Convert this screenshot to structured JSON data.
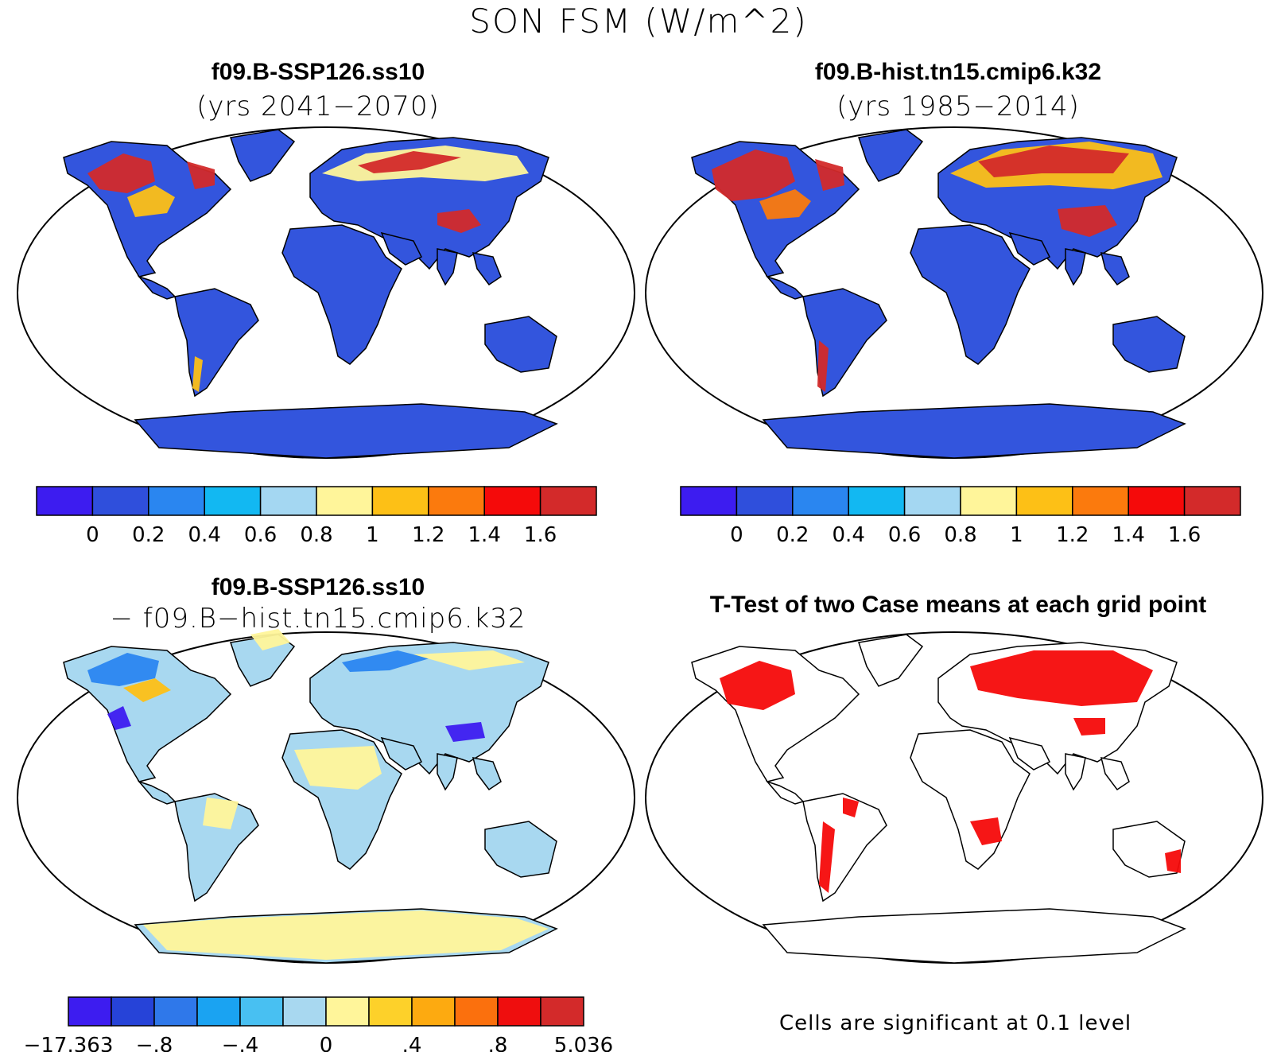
{
  "figure_title": "SON FSM (W/m^2)",
  "panels": [
    {
      "title": "f09.B-SSP126.ss10",
      "subtitle": "(yrs 2041−2070)"
    },
    {
      "title": "f09.B-hist.tn15.cmip6.k32",
      "subtitle": "(yrs 1985−2014)"
    },
    {
      "title": "f09.B-SSP126.ss10",
      "subtitle": "− f09.B−hist.tn15.cmip6.k32"
    },
    {
      "title": "T-Test of two Case means at each grid point",
      "subtitle": ""
    }
  ],
  "colorbars": {
    "mean": {
      "colors": [
        "#3d1cf0",
        "#2f4fdc",
        "#2a86f0",
        "#12b8f2",
        "#a4d7f2",
        "#fff59a",
        "#fdc016",
        "#fb7a0d",
        "#f50a0a",
        "#d32a2a"
      ],
      "labels": [
        "0",
        "0.2",
        "0.4",
        "0.6",
        "0.8",
        "1",
        "1.2",
        "1.4",
        "1.6"
      ]
    },
    "diff": {
      "colors": [
        "#3d1cf0",
        "#2643d8",
        "#2f78ea",
        "#1aa3f2",
        "#48c0f2",
        "#a8d8f0",
        "#fff59a",
        "#fdd12a",
        "#fdaa10",
        "#fb700d",
        "#ef0e0e",
        "#d32a2a"
      ],
      "labels": [
        "−17.363",
        "−.8",
        "−.4",
        "0",
        ".4",
        ".8",
        "5.036"
      ]
    }
  },
  "significance_note": "Cells are significant at 0.1 level",
  "colors": {
    "ocean": "#ffffff",
    "land_low": "#3355dd",
    "diff_background": "#a8d8f0",
    "significant": "#f50a0a"
  }
}
